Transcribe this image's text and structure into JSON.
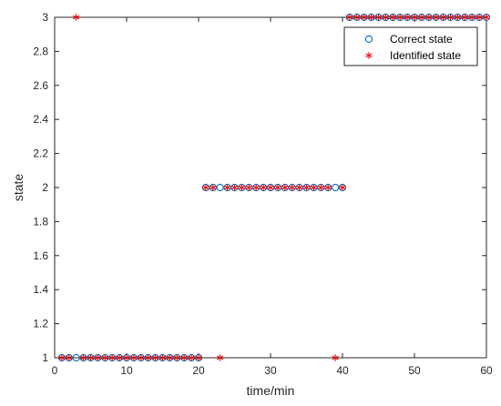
{
  "chart_data": {
    "type": "scatter",
    "title": "",
    "xlabel": "time/min",
    "ylabel": "state",
    "xlim": [
      0,
      60
    ],
    "ylim": [
      1,
      3
    ],
    "xticks": [
      0,
      10,
      20,
      30,
      40,
      50,
      60
    ],
    "yticks": [
      1,
      1.2,
      1.4,
      1.6,
      1.8,
      2,
      2.2,
      2.4,
      2.6,
      2.8,
      3
    ],
    "grid": false,
    "legend_position": "top-right",
    "series": [
      {
        "name": "Correct state",
        "marker": "circle",
        "color": "#0072BD",
        "x": [
          1,
          2,
          3,
          4,
          5,
          6,
          7,
          8,
          9,
          10,
          11,
          12,
          13,
          14,
          15,
          16,
          17,
          18,
          19,
          20,
          21,
          22,
          23,
          24,
          25,
          26,
          27,
          28,
          29,
          30,
          31,
          32,
          33,
          34,
          35,
          36,
          37,
          38,
          39,
          40,
          41,
          42,
          43,
          44,
          45,
          46,
          47,
          48,
          49,
          50,
          51,
          52,
          53,
          54,
          55,
          56,
          57,
          58,
          59,
          60
        ],
        "y": [
          1,
          1,
          1,
          1,
          1,
          1,
          1,
          1,
          1,
          1,
          1,
          1,
          1,
          1,
          1,
          1,
          1,
          1,
          1,
          1,
          2,
          2,
          2,
          2,
          2,
          2,
          2,
          2,
          2,
          2,
          2,
          2,
          2,
          2,
          2,
          2,
          2,
          2,
          2,
          2,
          3,
          3,
          3,
          3,
          3,
          3,
          3,
          3,
          3,
          3,
          3,
          3,
          3,
          3,
          3,
          3,
          3,
          3,
          3,
          3
        ]
      },
      {
        "name": "Identified state",
        "marker": "asterisk",
        "color": "#FF0000",
        "x": [
          1,
          2,
          3,
          4,
          5,
          6,
          7,
          8,
          9,
          10,
          11,
          12,
          13,
          14,
          15,
          16,
          17,
          18,
          19,
          20,
          21,
          22,
          23,
          24,
          25,
          26,
          27,
          28,
          29,
          30,
          31,
          32,
          33,
          34,
          35,
          36,
          37,
          38,
          39,
          40,
          41,
          42,
          43,
          44,
          45,
          46,
          47,
          48,
          49,
          50,
          51,
          52,
          53,
          54,
          55,
          56,
          57,
          58,
          59,
          60
        ],
        "y": [
          1,
          1,
          3,
          1,
          1,
          1,
          1,
          1,
          1,
          1,
          1,
          1,
          1,
          1,
          1,
          1,
          1,
          1,
          1,
          1,
          2,
          2,
          1,
          2,
          2,
          2,
          2,
          2,
          2,
          2,
          2,
          2,
          2,
          2,
          2,
          2,
          2,
          2,
          1,
          2,
          3,
          3,
          3,
          3,
          3,
          3,
          3,
          3,
          3,
          3,
          3,
          3,
          3,
          3,
          3,
          3,
          3,
          3,
          3,
          3
        ]
      }
    ]
  }
}
